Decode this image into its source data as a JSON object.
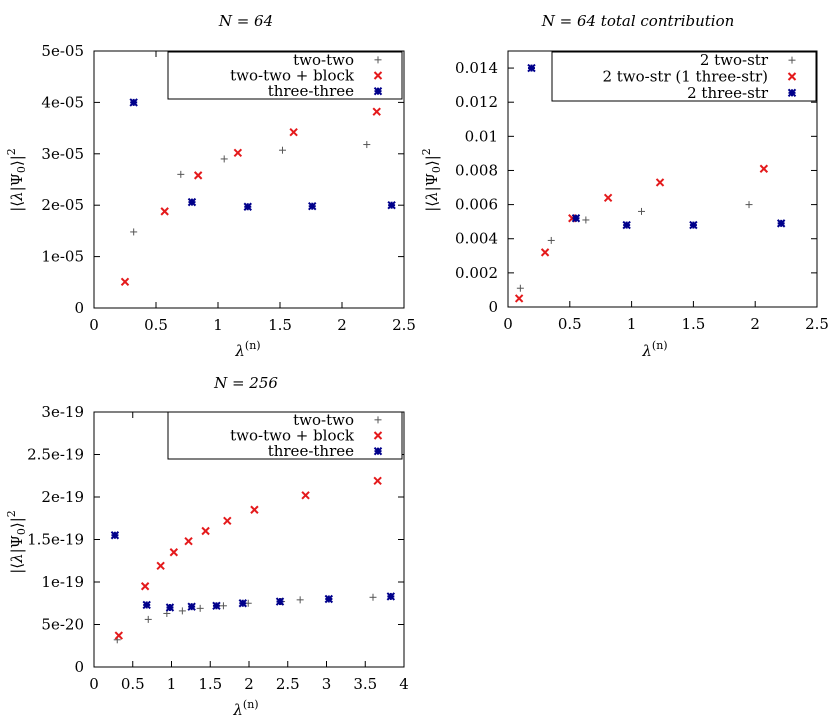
{
  "chart_data": [
    {
      "type": "scatter",
      "title": "N = 64",
      "xlabel": "λ(n)",
      "ylabel": "|⟨λ|Ψ0⟩|²",
      "xlim": [
        0,
        2.5
      ],
      "ylim": [
        0,
        5e-05
      ],
      "xticks": [
        "0",
        "0.5",
        "1",
        "1.5",
        "2",
        "2.5"
      ],
      "xtick_values": [
        0,
        0.5,
        1,
        1.5,
        2,
        2.5
      ],
      "yticks": [
        "0",
        "1e-05",
        "2e-05",
        "3e-05",
        "4e-05",
        "5e-05"
      ],
      "ytick_values": [
        0,
        1e-05,
        2e-05,
        3e-05,
        4e-05,
        5e-05
      ],
      "legend_position": "top-right",
      "series": [
        {
          "name": "two-two",
          "marker": "plus",
          "color": "#555555",
          "points": [
            [
              0.32,
              1.48e-05
            ],
            [
              0.7,
              2.6e-05
            ],
            [
              1.05,
              2.9e-05
            ],
            [
              1.52,
              3.07e-05
            ],
            [
              2.2,
              3.18e-05
            ]
          ]
        },
        {
          "name": "two-two + block",
          "marker": "cross",
          "color": "#e41a1c",
          "points": [
            [
              0.25,
              5.1e-06
            ],
            [
              0.57,
              1.88e-05
            ],
            [
              0.84,
              2.58e-05
            ],
            [
              1.16,
              3.02e-05
            ],
            [
              1.61,
              3.42e-05
            ],
            [
              2.28,
              3.82e-05
            ]
          ]
        },
        {
          "name": "three-three",
          "marker": "star",
          "color": "#00008b",
          "points": [
            [
              0.32,
              4e-05
            ],
            [
              0.79,
              2.06e-05
            ],
            [
              1.24,
              1.97e-05
            ],
            [
              1.76,
              1.98e-05
            ],
            [
              2.4,
              2e-05
            ]
          ]
        }
      ]
    },
    {
      "type": "scatter",
      "title": "N = 64 total contribution",
      "xlabel": "λ(n)",
      "ylabel": "|⟨λ|Ψ0⟩|²",
      "xlim": [
        0,
        2.5
      ],
      "ylim": [
        0,
        0.015
      ],
      "xticks": [
        "0",
        "0.5",
        "1",
        "1.5",
        "2",
        "2.5"
      ],
      "xtick_values": [
        0,
        0.5,
        1,
        1.5,
        2,
        2.5
      ],
      "yticks": [
        "0",
        "0.002",
        "0.004",
        "0.006",
        "0.008",
        "0.01",
        "0.012",
        "0.014"
      ],
      "ytick_values": [
        0,
        0.002,
        0.004,
        0.006,
        0.008,
        0.01,
        0.012,
        0.014
      ],
      "legend_position": "top-right",
      "series": [
        {
          "name": "2 two-str",
          "marker": "plus",
          "color": "#555555",
          "points": [
            [
              0.1,
              0.0011
            ],
            [
              0.35,
              0.0039
            ],
            [
              0.63,
              0.0051
            ],
            [
              1.08,
              0.0056
            ],
            [
              1.95,
              0.006
            ]
          ]
        },
        {
          "name": "2 two-str (1 three-str)",
          "marker": "cross",
          "color": "#e41a1c",
          "points": [
            [
              0.09,
              0.0005
            ],
            [
              0.3,
              0.0032
            ],
            [
              0.52,
              0.0052
            ],
            [
              0.81,
              0.0064
            ],
            [
              1.23,
              0.0073
            ],
            [
              2.07,
              0.0081
            ]
          ]
        },
        {
          "name": "2 three-str",
          "marker": "star",
          "color": "#00008b",
          "points": [
            [
              0.19,
              0.014
            ],
            [
              0.55,
              0.0052
            ],
            [
              0.96,
              0.0048
            ],
            [
              1.5,
              0.0048
            ],
            [
              2.21,
              0.0049
            ]
          ]
        }
      ]
    },
    {
      "type": "scatter",
      "title": "N = 256",
      "xlabel": "λ(n)",
      "ylabel": "|⟨λ|Ψ0⟩|²",
      "xlim": [
        0,
        4
      ],
      "ylim": [
        0,
        3e-19
      ],
      "xticks": [
        "0",
        "0.5",
        "1",
        "1.5",
        "2",
        "2.5",
        "3",
        "3.5",
        "4"
      ],
      "xtick_values": [
        0,
        0.5,
        1,
        1.5,
        2,
        2.5,
        3,
        3.5,
        4
      ],
      "yticks": [
        "0",
        "5e-20",
        "1e-19",
        "1.5e-19",
        "2e-19",
        "2.5e-19",
        "3e-19"
      ],
      "ytick_values": [
        0,
        5e-20,
        1e-19,
        1.5e-19,
        2e-19,
        2.5e-19,
        3e-19
      ],
      "legend_position": "top-right",
      "series": [
        {
          "name": "two-two",
          "marker": "plus",
          "color": "#555555",
          "points": [
            [
              0.3,
              3.2e-20
            ],
            [
              0.7,
              5.6e-20
            ],
            [
              0.94,
              6.3e-20
            ],
            [
              1.14,
              6.6e-20
            ],
            [
              1.37,
              6.9e-20
            ],
            [
              1.67,
              7.2e-20
            ],
            [
              1.99,
              7.5e-20
            ],
            [
              2.42,
              7.7e-20
            ],
            [
              2.66,
              7.9e-20
            ],
            [
              3.03,
              8e-20
            ],
            [
              3.6,
              8.2e-20
            ]
          ]
        },
        {
          "name": "two-two + block",
          "marker": "cross",
          "color": "#e41a1c",
          "points": [
            [
              0.32,
              3.7e-20
            ],
            [
              0.66,
              9.5e-20
            ],
            [
              0.86,
              1.19e-19
            ],
            [
              1.03,
              1.35e-19
            ],
            [
              1.22,
              1.48e-19
            ],
            [
              1.44,
              1.6e-19
            ],
            [
              1.72,
              1.72e-19
            ],
            [
              2.07,
              1.85e-19
            ],
            [
              2.73,
              2.02e-19
            ],
            [
              3.66,
              2.19e-19
            ]
          ]
        },
        {
          "name": "three-three",
          "marker": "star",
          "color": "#00008b",
          "points": [
            [
              0.27,
              1.55e-19
            ],
            [
              0.68,
              7.3e-20
            ],
            [
              0.98,
              7e-20
            ],
            [
              1.26,
              7.1e-20
            ],
            [
              1.58,
              7.2e-20
            ],
            [
              1.92,
              7.5e-20
            ],
            [
              2.4,
              7.7e-20
            ],
            [
              3.03,
              8e-20
            ],
            [
              3.83,
              8.3e-20
            ]
          ]
        }
      ]
    }
  ]
}
